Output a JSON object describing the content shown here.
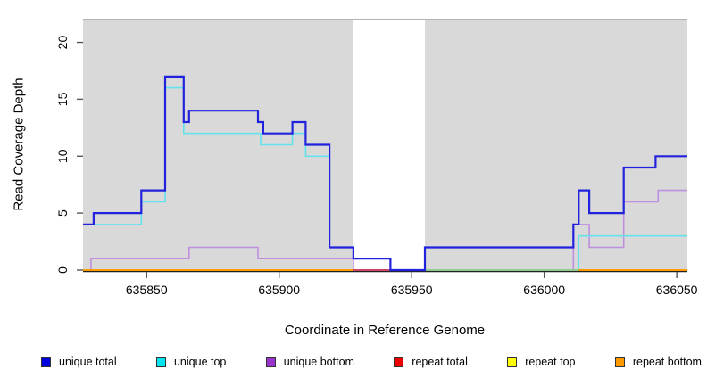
{
  "chart_data": {
    "type": "line",
    "subtype": "step-after",
    "title": "",
    "xlabel": "Coordinate in Reference Genome",
    "ylabel": "Read Coverage Depth",
    "xlim": [
      635826,
      636054
    ],
    "ylim": [
      0,
      22
    ],
    "x_ticks": [
      635850,
      635900,
      635950,
      636000,
      636050
    ],
    "y_ticks": [
      0,
      5,
      10,
      15,
      20
    ],
    "grid": false,
    "legend_position": "bottom",
    "plot_bg_color": "#d9d9d9",
    "top_border_color": "#999999",
    "axis_color": "#222222",
    "tick_color": "#555555",
    "gap_band": {
      "x0": 635928,
      "x1": 635955,
      "color": "#ffffff"
    },
    "series": [
      {
        "name": "repeat total",
        "line_color": "#cc4466",
        "width": 1.6,
        "points": [
          [
            635826,
            0
          ],
          [
            636054,
            0
          ]
        ]
      },
      {
        "name": "repeat top",
        "line_color": "#f2e400",
        "width": 1.4,
        "points": [
          [
            635826,
            0
          ],
          [
            636054,
            0
          ]
        ]
      },
      {
        "name": "repeat bottom",
        "line_color": "#ff9a00",
        "width": 2,
        "points": [
          [
            635826,
            0
          ],
          [
            636054,
            0
          ]
        ]
      },
      {
        "name": "unique bottom",
        "line_color": "#bf8fdf",
        "width": 1.6,
        "points": [
          [
            635826,
            0
          ],
          [
            635829,
            1
          ],
          [
            635866,
            2
          ],
          [
            635892,
            1
          ],
          [
            635928,
            0
          ],
          [
            636011,
            4
          ],
          [
            636017,
            2
          ],
          [
            636030,
            6
          ],
          [
            636043,
            7
          ],
          [
            636054,
            7
          ]
        ]
      },
      {
        "name": "unique top",
        "line_color": "#63e2ec",
        "width": 1.6,
        "points": [
          [
            635826,
            4
          ],
          [
            635848,
            6
          ],
          [
            635857,
            16
          ],
          [
            635864,
            12
          ],
          [
            635893,
            11
          ],
          [
            635905,
            12
          ],
          [
            635910,
            10
          ],
          [
            635919,
            2
          ],
          [
            635928,
            1
          ],
          [
            635942,
            0
          ],
          [
            636013,
            3
          ],
          [
            636054,
            3
          ]
        ]
      },
      {
        "name": "unique total",
        "line_color": "#2222dd",
        "width": 2.2,
        "points": [
          [
            635826,
            4
          ],
          [
            635830,
            5
          ],
          [
            635848,
            7
          ],
          [
            635857,
            17
          ],
          [
            635864,
            13
          ],
          [
            635866,
            14
          ],
          [
            635892,
            13
          ],
          [
            635894,
            12
          ],
          [
            635905,
            13
          ],
          [
            635910,
            11
          ],
          [
            635919,
            2
          ],
          [
            635928,
            1
          ],
          [
            635942,
            0
          ],
          [
            635955,
            2
          ],
          [
            636011,
            4
          ],
          [
            636013,
            7
          ],
          [
            636017,
            5
          ],
          [
            636030,
            9
          ],
          [
            636042,
            10
          ],
          [
            636054,
            10
          ]
        ]
      }
    ],
    "baseline_visible_segments": [
      {
        "x0": 635826,
        "x1": 635928,
        "color": "#ff9a00",
        "note": "repeat bottom"
      },
      {
        "x0": 635928,
        "x1": 635942,
        "color": "#cc4466",
        "note": "repeat total in gap band"
      },
      {
        "x0": 635955,
        "x1": 636013,
        "color": "#8fca8f",
        "note": "overlapping zero lines"
      },
      {
        "x0": 636013,
        "x1": 636054,
        "color": "#ff9a00",
        "note": "repeat bottom"
      }
    ],
    "legend": [
      {
        "label": "unique total",
        "color": "#0000dd"
      },
      {
        "label": "unique top",
        "color": "#00e5ee"
      },
      {
        "label": "unique bottom",
        "color": "#9933cc"
      },
      {
        "label": "repeat total",
        "color": "#ee0000"
      },
      {
        "label": "repeat top",
        "color": "#ffff00"
      },
      {
        "label": "repeat bottom",
        "color": "#ff9900"
      }
    ]
  }
}
